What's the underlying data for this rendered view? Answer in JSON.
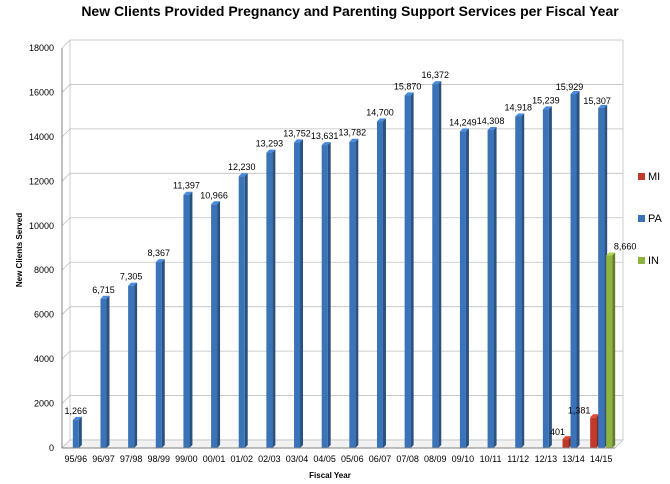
{
  "chart_data": {
    "type": "bar",
    "title": "New Clients Provided Pregnancy and Parenting Support Services per Fiscal Year",
    "xlabel": "Fiscal Year",
    "ylabel": "New Clients Served",
    "ylim": [
      0,
      18000
    ],
    "yticks": [
      0,
      2000,
      4000,
      6000,
      8000,
      10000,
      12000,
      14000,
      16000,
      18000
    ],
    "grid": true,
    "legend_position": "right",
    "categories": [
      "95/96",
      "96/97",
      "97/98",
      "98/99",
      "99/00",
      "00/01",
      "01/02",
      "02/03",
      "03/04",
      "04/05",
      "05/06",
      "06/07",
      "07/08",
      "08/09",
      "09/10",
      "10/11",
      "11/12",
      "12/13",
      "13/14",
      "14/15"
    ],
    "series": [
      {
        "name": "MI",
        "color": "#c0392b",
        "values": [
          null,
          null,
          null,
          null,
          null,
          null,
          null,
          null,
          null,
          null,
          null,
          null,
          null,
          null,
          null,
          null,
          null,
          null,
          401,
          1381
        ],
        "labels": [
          "",
          "",
          "",
          "",
          "",
          "",
          "",
          "",
          "",
          "",
          "",
          "",
          "",
          "",
          "",
          "",
          "",
          "",
          "401",
          "1,381"
        ]
      },
      {
        "name": "PA",
        "color": "#3b73b9",
        "values": [
          1266,
          6715,
          7305,
          8367,
          11397,
          10966,
          12230,
          13293,
          13752,
          13631,
          13782,
          14700,
          15870,
          16372,
          14249,
          14308,
          14918,
          15239,
          15929,
          15307
        ],
        "labels": [
          "1,266",
          "6,715",
          "7,305",
          "8,367",
          "11,397",
          "10,966",
          "12,230",
          "13,293",
          "13,752",
          "13,631",
          "13,782",
          "14,700",
          "15,870",
          "16,372",
          "14,249",
          "14,308",
          "14,918",
          "15,239",
          "15,929",
          "15,307"
        ]
      },
      {
        "name": "IN",
        "color": "#8fb33f",
        "values": [
          null,
          null,
          null,
          null,
          null,
          null,
          null,
          null,
          null,
          null,
          null,
          null,
          null,
          null,
          null,
          null,
          null,
          null,
          null,
          8660
        ],
        "labels": [
          "",
          "",
          "",
          "",
          "",
          "",
          "",
          "",
          "",
          "",
          "",
          "",
          "",
          "",
          "",
          "",
          "",
          "",
          "",
          "8,660"
        ]
      }
    ]
  }
}
